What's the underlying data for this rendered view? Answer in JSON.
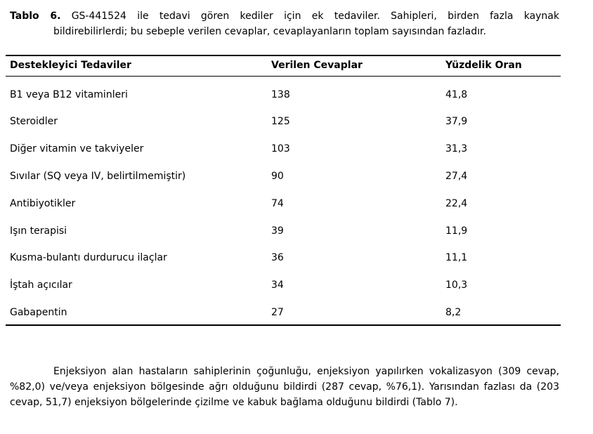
{
  "caption": {
    "label": "Tablo 6.",
    "line1": "GS-441524 ile tedavi gören kediler için ek tedaviler. Sahipleri, birden fazla kaynak",
    "line2": "bildirebilirlerdi; bu sebeple verilen cevaplar, cevaplayanların toplam sayısından fazladır."
  },
  "table": {
    "headers": [
      "Destekleyici Tedaviler",
      "Verilen Cevaplar",
      "Yüzdelik Oran"
    ],
    "rows": [
      [
        "B1 veya B12 vitaminleri",
        "138",
        "41,8"
      ],
      [
        "Steroidler",
        "125",
        "37,9"
      ],
      [
        "Diğer vitamin ve takviyeler",
        "103",
        "31,3"
      ],
      [
        "Sıvılar (SQ veya IV, belirtilmemiştir)",
        "90",
        "27,4"
      ],
      [
        "Antibiyotikler",
        "74",
        "22,4"
      ],
      [
        "Işın terapisi",
        "39",
        "11,9"
      ],
      [
        "Kusma-bulantı durdurucu ilaçlar",
        "36",
        "11,1"
      ],
      [
        "İştah açıcılar",
        "34",
        "10,3"
      ],
      [
        "Gabapentin",
        "27",
        "8,2"
      ]
    ]
  },
  "paragraph": "Enjeksiyon alan hastaların sahiplerinin çoğunluğu, enjeksiyon yapılırken vokalizasyon (309 cevap, %82,0) ve/veya enjeksiyon bölgesinde ağrı olduğunu bildirdi (287 cevap, %76,1). Yarısından fazlası da (203 cevap, 51,7) enjeksiyon bölgelerinde çizilme ve kabuk bağlama olduğunu bildirdi (Tablo 7)."
}
